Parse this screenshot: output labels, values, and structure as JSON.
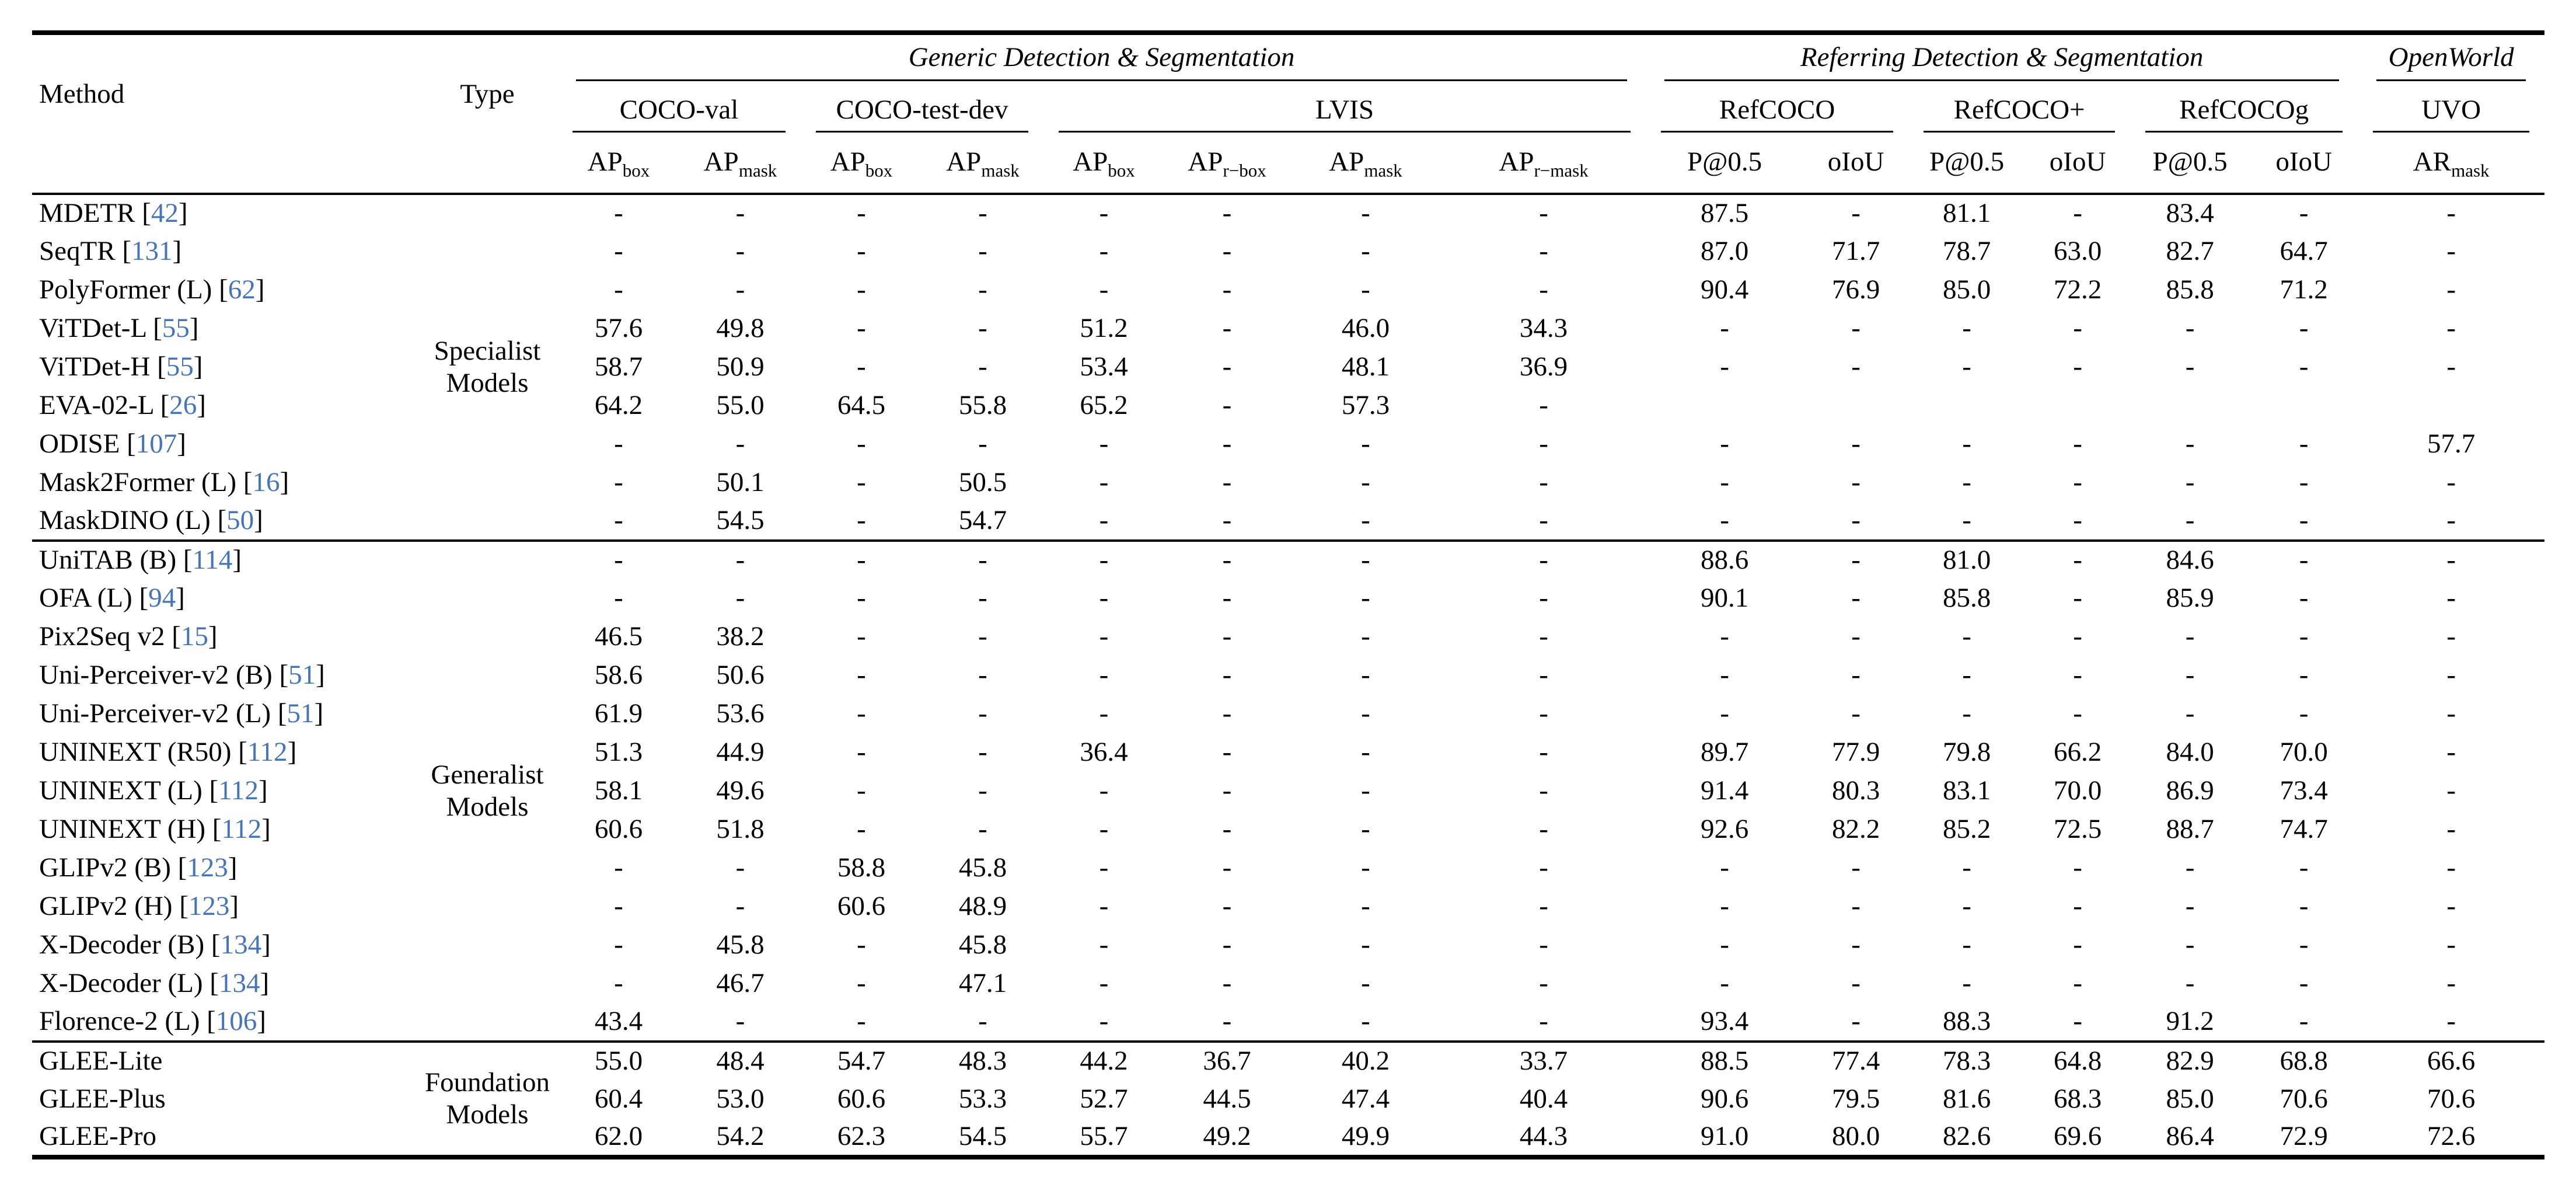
{
  "cite_color": "#4574b9",
  "header": {
    "method": "Method",
    "type": "Type"
  },
  "col_groups": [
    {
      "label": "Generic Detection & Segmentation",
      "span": 8
    },
    {
      "label": "Referring Detection & Segmentation",
      "span": 6
    },
    {
      "label": "OpenWorld",
      "span": 1
    }
  ],
  "datasets": [
    {
      "label": "COCO-val",
      "span": 2
    },
    {
      "label": "COCO-test-dev",
      "span": 2
    },
    {
      "label": "LVIS",
      "span": 4
    },
    {
      "label": "RefCOCO",
      "span": 2
    },
    {
      "label": "RefCOCO+",
      "span": 2
    },
    {
      "label": "RefCOCOg",
      "span": 2
    },
    {
      "label": "UVO",
      "span": 1
    }
  ],
  "metrics": [
    {
      "base": "AP",
      "sub": "box"
    },
    {
      "base": "AP",
      "sub": "mask"
    },
    {
      "base": "AP",
      "sub": "box"
    },
    {
      "base": "AP",
      "sub": "mask"
    },
    {
      "base": "AP",
      "sub": "box"
    },
    {
      "base": "AP",
      "sub": "r−box"
    },
    {
      "base": "AP",
      "sub": "mask"
    },
    {
      "base": "AP",
      "sub": "r−mask"
    },
    {
      "base": "P@0.5",
      "sub": ""
    },
    {
      "base": "oIoU",
      "sub": ""
    },
    {
      "base": "P@0.5",
      "sub": ""
    },
    {
      "base": "oIoU",
      "sub": ""
    },
    {
      "base": "P@0.5",
      "sub": ""
    },
    {
      "base": "oIoU",
      "sub": ""
    },
    {
      "base": "AR",
      "sub": "mask"
    }
  ],
  "groups": [
    {
      "type_label": "Specialist\nModels",
      "rows": [
        {
          "method": "MDETR",
          "cite": "42",
          "values": [
            "-",
            "-",
            "-",
            "-",
            "-",
            "-",
            "-",
            "-",
            "87.5",
            "-",
            "81.1",
            "-",
            "83.4",
            "-",
            "-"
          ]
        },
        {
          "method": "SeqTR",
          "cite": "131",
          "values": [
            "-",
            "-",
            "-",
            "-",
            "-",
            "-",
            "-",
            "-",
            "87.0",
            "71.7",
            "78.7",
            "63.0",
            "82.7",
            "64.7",
            "-"
          ]
        },
        {
          "method": "PolyFormer (L)",
          "cite": "62",
          "values": [
            "-",
            "-",
            "-",
            "-",
            "-",
            "-",
            "-",
            "-",
            "90.4",
            "76.9",
            "85.0",
            "72.2",
            "85.8",
            "71.2",
            "-"
          ]
        },
        {
          "method": "ViTDet-L",
          "cite": "55",
          "values": [
            "57.6",
            "49.8",
            "-",
            "-",
            "51.2",
            "-",
            "46.0",
            "34.3",
            "-",
            "-",
            "-",
            "-",
            "-",
            "-",
            "-"
          ]
        },
        {
          "method": "ViTDet-H",
          "cite": "55",
          "values": [
            "58.7",
            "50.9",
            "-",
            "-",
            "53.4",
            "-",
            "48.1",
            "36.9",
            "-",
            "-",
            "-",
            "-",
            "-",
            "-",
            "-"
          ]
        },
        {
          "method": "EVA-02-L",
          "cite": "26",
          "values": [
            "64.2",
            "55.0",
            "64.5",
            "55.8",
            "65.2",
            "-",
            "57.3",
            "-",
            "",
            "",
            "",
            "",
            "",
            "",
            ""
          ]
        },
        {
          "method": "ODISE",
          "cite": "107",
          "values": [
            "-",
            "-",
            "-",
            "-",
            "-",
            "-",
            "-",
            "-",
            "-",
            "-",
            "-",
            "-",
            "-",
            "-",
            "57.7"
          ]
        },
        {
          "method": "Mask2Former (L)",
          "cite": "16",
          "values": [
            "-",
            "50.1",
            "-",
            "50.5",
            "-",
            "-",
            "-",
            "-",
            "-",
            "-",
            "-",
            "-",
            "-",
            "-",
            "-"
          ]
        },
        {
          "method": "MaskDINO (L)",
          "cite": "50",
          "values": [
            "-",
            "54.5",
            "-",
            "54.7",
            "-",
            "-",
            "-",
            "-",
            "-",
            "-",
            "-",
            "-",
            "-",
            "-",
            "-"
          ]
        }
      ]
    },
    {
      "type_label": "Generalist\nModels",
      "rows": [
        {
          "method": "UniTAB (B)",
          "cite": "114",
          "values": [
            "-",
            "-",
            "-",
            "-",
            "-",
            "-",
            "-",
            "-",
            "88.6",
            "-",
            "81.0",
            "-",
            "84.6",
            "-",
            "-"
          ]
        },
        {
          "method": "OFA (L)",
          "cite": "94",
          "values": [
            "-",
            "-",
            "-",
            "-",
            "-",
            "-",
            "-",
            "-",
            "90.1",
            "-",
            "85.8",
            "-",
            "85.9",
            "-",
            "-"
          ]
        },
        {
          "method": "Pix2Seq v2",
          "cite": "15",
          "values": [
            "46.5",
            "38.2",
            "-",
            "-",
            "-",
            "-",
            "-",
            "-",
            "-",
            "-",
            "-",
            "-",
            "-",
            "-",
            "-"
          ]
        },
        {
          "method": "Uni-Perceiver-v2 (B)",
          "cite": "51",
          "values": [
            "58.6",
            "50.6",
            "-",
            "-",
            "-",
            "-",
            "-",
            "-",
            "-",
            "-",
            "-",
            "-",
            "-",
            "-",
            "-"
          ]
        },
        {
          "method": "Uni-Perceiver-v2 (L)",
          "cite": "51",
          "values": [
            "61.9",
            "53.6",
            "-",
            "-",
            "-",
            "-",
            "-",
            "-",
            "-",
            "-",
            "-",
            "-",
            "-",
            "-",
            "-"
          ]
        },
        {
          "method": "UNINEXT (R50)",
          "cite": "112",
          "values": [
            "51.3",
            "44.9",
            "-",
            "-",
            "36.4",
            "-",
            "-",
            "-",
            "89.7",
            "77.9",
            "79.8",
            "66.2",
            "84.0",
            "70.0",
            "-"
          ]
        },
        {
          "method": "UNINEXT (L)",
          "cite": "112",
          "values": [
            "58.1",
            "49.6",
            "-",
            "-",
            "-",
            "-",
            "-",
            "-",
            "91.4",
            "80.3",
            "83.1",
            "70.0",
            "86.9",
            "73.4",
            "-"
          ]
        },
        {
          "method": "UNINEXT (H)",
          "cite": "112",
          "values": [
            "60.6",
            "51.8",
            "-",
            "-",
            "-",
            "-",
            "-",
            "-",
            "92.6",
            "82.2",
            "85.2",
            "72.5",
            "88.7",
            "74.7",
            "-"
          ]
        },
        {
          "method": "GLIPv2 (B)",
          "cite": "123",
          "values": [
            "-",
            "-",
            "58.8",
            "45.8",
            "-",
            "-",
            "-",
            "-",
            "-",
            "-",
            "-",
            "-",
            "-",
            "-",
            "-"
          ]
        },
        {
          "method": "GLIPv2 (H)",
          "cite": "123",
          "values": [
            "-",
            "-",
            "60.6",
            "48.9",
            "-",
            "-",
            "-",
            "-",
            "-",
            "-",
            "-",
            "-",
            "-",
            "-",
            "-"
          ]
        },
        {
          "method": "X-Decoder (B)",
          "cite": "134",
          "values": [
            "-",
            "45.8",
            "-",
            "45.8",
            "-",
            "-",
            "-",
            "-",
            "-",
            "-",
            "-",
            "-",
            "-",
            "-",
            "-"
          ]
        },
        {
          "method": "X-Decoder (L)",
          "cite": "134",
          "values": [
            "-",
            "46.7",
            "-",
            "47.1",
            "-",
            "-",
            "-",
            "-",
            "-",
            "-",
            "-",
            "-",
            "-",
            "-",
            "-"
          ]
        },
        {
          "method": "Florence-2 (L)",
          "cite": "106",
          "values": [
            "43.4",
            "-",
            "-",
            "-",
            "-",
            "-",
            "-",
            "-",
            "93.4",
            "-",
            "88.3",
            "-",
            "91.2",
            "-",
            "-"
          ]
        }
      ]
    },
    {
      "type_label": "Foundation\nModels",
      "rows": [
        {
          "method": "GLEE-Lite",
          "cite": null,
          "values": [
            "55.0",
            "48.4",
            "54.7",
            "48.3",
            "44.2",
            "36.7",
            "40.2",
            "33.7",
            "88.5",
            "77.4",
            "78.3",
            "64.8",
            "82.9",
            "68.8",
            "66.6"
          ]
        },
        {
          "method": "GLEE-Plus",
          "cite": null,
          "values": [
            "60.4",
            "53.0",
            "60.6",
            "53.3",
            "52.7",
            "44.5",
            "47.4",
            "40.4",
            "90.6",
            "79.5",
            "81.6",
            "68.3",
            "85.0",
            "70.6",
            "70.6"
          ]
        },
        {
          "method": "GLEE-Pro",
          "cite": null,
          "values": [
            "62.0",
            "54.2",
            "62.3",
            "54.5",
            "55.7",
            "49.2",
            "49.9",
            "44.3",
            "91.0",
            "80.0",
            "82.6",
            "69.6",
            "86.4",
            "72.9",
            "72.6"
          ]
        }
      ]
    }
  ]
}
